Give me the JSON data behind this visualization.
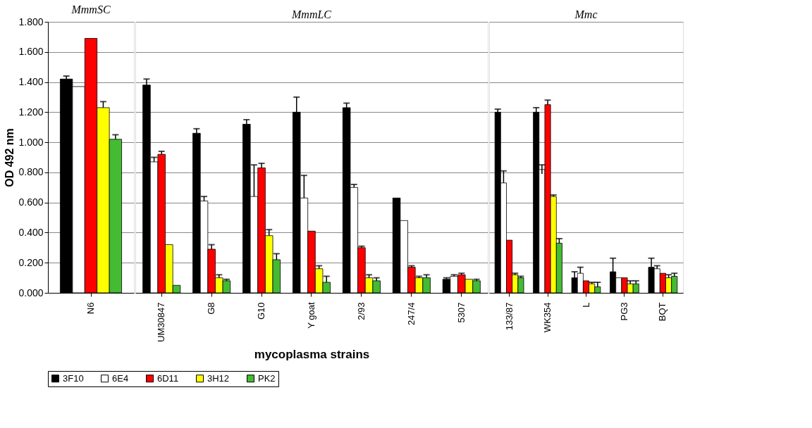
{
  "chart_data": [
    {
      "type": "bar",
      "title": "MmmSC",
      "ylabel": "OD 492 nm",
      "categories": [
        "N6"
      ],
      "ylim": [
        0,
        1.8
      ],
      "yticks": [
        {
          "value": 0,
          "label": "0.000"
        },
        {
          "value": 0.2,
          "label": "0.200"
        },
        {
          "value": 0.4,
          "label": "0.400"
        },
        {
          "value": 0.6,
          "label": "0.600"
        },
        {
          "value": 0.8,
          "label": "0.800"
        },
        {
          "value": 1.0,
          "label": "1.000"
        },
        {
          "value": 1.2,
          "label": "1.200"
        },
        {
          "value": 1.4,
          "label": "1.400"
        },
        {
          "value": 1.6,
          "label": "1.600"
        },
        {
          "value": 1.8,
          "label": "1.800"
        }
      ],
      "grid": "y",
      "legend": "bottom",
      "series": [
        {
          "name": "3F10",
          "color": "#000000",
          "values": [
            1.42
          ],
          "errors": [
            [
              1.42,
              1.44
            ]
          ]
        },
        {
          "name": "6E4",
          "color": "#ffffff",
          "values": [
            1.37
          ],
          "errors": [
            null
          ]
        },
        {
          "name": "6D11",
          "color": "#ff0000",
          "values": [
            1.69
          ],
          "errors": [
            null
          ]
        },
        {
          "name": "3H12",
          "color": "#ffff00",
          "values": [
            1.23
          ],
          "errors": [
            [
              1.23,
              1.27
            ]
          ]
        },
        {
          "name": "PK2",
          "color": "#44bb33",
          "values": [
            1.02
          ],
          "errors": [
            [
              1.02,
              1.05
            ]
          ]
        }
      ]
    },
    {
      "type": "bar",
      "title": "MmmLC",
      "xlabel": "mycoplasma strains",
      "categories": [
        "UM30847",
        "G8",
        "G10",
        "Y goat",
        "2/93",
        "247/4",
        "5307"
      ],
      "ylim": [
        0,
        1.8
      ],
      "yticks": [
        0,
        0.2,
        0.4,
        0.6,
        0.8,
        1.0,
        1.2,
        1.4,
        1.6,
        1.8
      ],
      "grid": "y",
      "tick_labels": "x",
      "series": [
        {
          "color": "#000000",
          "values": [
            1.38,
            1.06,
            1.12,
            1.2,
            1.23,
            0.63,
            0.09
          ],
          "errors": [
            [
              1.38,
              1.42
            ],
            [
              1.06,
              1.09
            ],
            [
              1.12,
              1.15
            ],
            [
              1.2,
              1.3
            ],
            [
              1.23,
              1.26
            ],
            null,
            [
              0.09,
              0.1
            ]
          ]
        },
        {
          "color": "#ffffff",
          "values": [
            0.87,
            0.61,
            0.64,
            0.63,
            0.7,
            0.48,
            0.11
          ],
          "errors": [
            [
              0.87,
              0.9
            ],
            [
              0.61,
              0.64
            ],
            [
              0.64,
              0.85
            ],
            [
              0.63,
              0.78
            ],
            [
              0.7,
              0.72
            ],
            null,
            [
              0.11,
              0.12
            ]
          ]
        },
        {
          "color": "#ff0000",
          "values": [
            0.92,
            0.29,
            0.83,
            0.41,
            0.3,
            0.17,
            0.12
          ],
          "errors": [
            [
              0.92,
              0.94
            ],
            [
              0.29,
              0.32
            ],
            [
              0.83,
              0.86
            ],
            null,
            [
              0.3,
              0.31
            ],
            [
              0.17,
              0.18
            ],
            [
              0.12,
              0.13
            ]
          ]
        },
        {
          "color": "#ffff00",
          "values": [
            0.32,
            0.1,
            0.38,
            0.16,
            0.1,
            0.1,
            0.09
          ],
          "errors": [
            null,
            [
              0.1,
              0.12
            ],
            [
              0.38,
              0.42
            ],
            [
              0.16,
              0.18
            ],
            [
              0.1,
              0.12
            ],
            [
              0.1,
              0.11
            ],
            null
          ]
        },
        {
          "color": "#44bb33",
          "values": [
            0.05,
            0.08,
            0.22,
            0.07,
            0.08,
            0.1,
            0.08
          ],
          "errors": [
            null,
            [
              0.08,
              0.09
            ],
            [
              0.22,
              0.26
            ],
            [
              0.07,
              0.11
            ],
            [
              0.08,
              0.1
            ],
            [
              0.1,
              0.12
            ],
            [
              0.08,
              0.09
            ]
          ]
        }
      ]
    },
    {
      "type": "bar",
      "title": "Mmc",
      "categories": [
        "133/87",
        "WK354",
        "L",
        "PG3",
        "BQT"
      ],
      "ylim": [
        0,
        1.8
      ],
      "yticks": [
        0,
        0.2,
        0.4,
        0.6,
        0.8,
        1.0,
        1.2,
        1.4,
        1.6,
        1.8
      ],
      "grid": "y",
      "tick_labels": "x",
      "series": [
        {
          "color": "#000000",
          "values": [
            1.2,
            1.2,
            0.1,
            0.14,
            0.17
          ],
          "errors": [
            [
              1.2,
              1.22
            ],
            [
              1.2,
              1.23
            ],
            [
              0.1,
              0.14
            ],
            [
              0.14,
              0.23
            ],
            [
              0.17,
              0.23
            ]
          ]
        },
        {
          "color": "#ffffff",
          "values": [
            0.73,
            0.82,
            0.13,
            0.1,
            0.16
          ],
          "errors": [
            [
              0.73,
              0.81
            ],
            [
              0.79,
              0.85
            ],
            [
              0.13,
              0.17
            ],
            null,
            [
              0.16,
              0.18
            ]
          ]
        },
        {
          "color": "#ff0000",
          "values": [
            0.35,
            1.25,
            0.08,
            0.1,
            0.13
          ],
          "errors": [
            null,
            [
              1.25,
              1.28
            ],
            null,
            null,
            null
          ]
        },
        {
          "color": "#ffff00",
          "values": [
            0.12,
            0.64,
            0.06,
            0.06,
            0.1
          ],
          "errors": [
            [
              0.12,
              0.13
            ],
            [
              0.64,
              0.65
            ],
            [
              0.06,
              0.07
            ],
            [
              0.06,
              0.08
            ],
            [
              0.1,
              0.12
            ]
          ]
        },
        {
          "color": "#44bb33",
          "values": [
            0.1,
            0.33,
            0.04,
            0.06,
            0.11
          ],
          "errors": [
            [
              0.1,
              0.11
            ],
            [
              0.33,
              0.36
            ],
            [
              0.04,
              0.07
            ],
            [
              0.06,
              0.08
            ],
            [
              0.11,
              0.13
            ]
          ]
        }
      ]
    }
  ]
}
